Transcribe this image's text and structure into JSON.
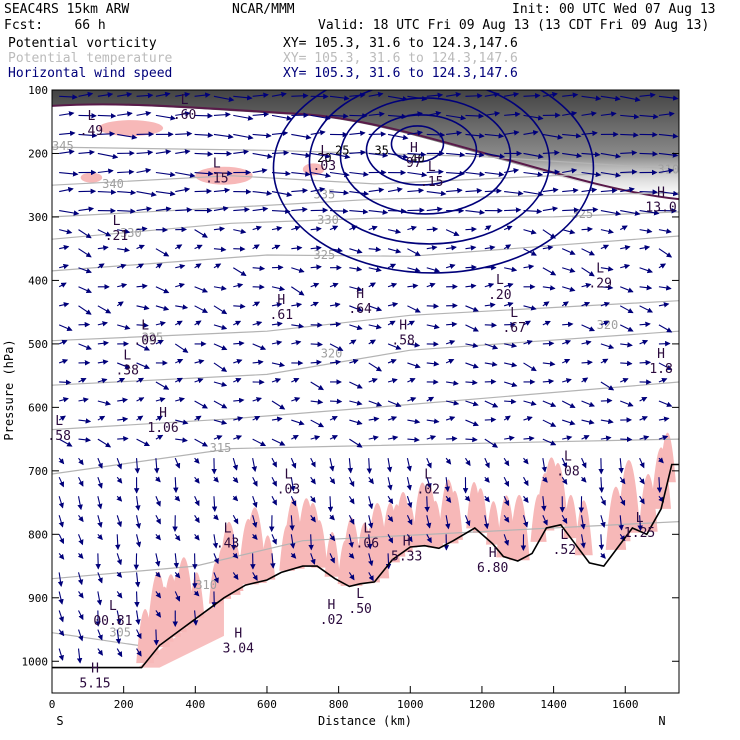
{
  "header": {
    "model": "SEAC4RS 15km ARW",
    "forecast": "Fcst:    66 h",
    "org": "NCAR/MMM",
    "init": "Init: 00 UTC Wed 07 Aug 13",
    "valid": "Valid: 18 UTC Fri 09 Aug 13 (13 CDT Fri 09 Aug 13)"
  },
  "fields": [
    {
      "name": "Potential vorticity",
      "xy": "XY= 105.3, 31.6 to 124.3,147.6",
      "color": "#000000"
    },
    {
      "name": "Potential temperature",
      "xy": "XY= 105.3, 31.6 to 124.3,147.6",
      "color": "#bbbbbb"
    },
    {
      "name": "Horizontal wind speed",
      "xy": "XY= 105.3, 31.6 to 124.3,147.6",
      "color": "#00007a"
    }
  ],
  "chart_data": {
    "type": "cross-section",
    "xlabel": "Distance (km)",
    "ylabel": "Pressure (hPa)",
    "xlim": [
      0,
      1750
    ],
    "ylim": [
      1050,
      100
    ],
    "x_ticks": [
      0,
      200,
      400,
      600,
      800,
      1000,
      1200,
      1400,
      1600
    ],
    "y_ticks": [
      100,
      200,
      300,
      400,
      500,
      600,
      700,
      800,
      900,
      1000
    ],
    "end_labels": {
      "left": "S",
      "right": "N"
    },
    "colors": {
      "theta": "#b4b4b4",
      "wind": "#00007a",
      "pv_shade": "#f7b8b8",
      "pv_line": "#5a1a4a",
      "terrain": "#000000"
    },
    "theta_contours": [
      {
        "label": "345",
        "x": 0,
        "p": 188
      },
      {
        "label": "340",
        "x": 140,
        "p": 248
      },
      {
        "label": "335",
        "x": 730,
        "p": 265
      },
      {
        "label": "330",
        "x": 190,
        "p": 325
      },
      {
        "label": "330",
        "x": 740,
        "p": 305
      },
      {
        "label": "325",
        "x": 250,
        "p": 490
      },
      {
        "label": "325",
        "x": 730,
        "p": 360
      },
      {
        "label": "325",
        "x": 1450,
        "p": 295
      },
      {
        "label": "320",
        "x": 750,
        "p": 515
      },
      {
        "label": "320",
        "x": 1520,
        "p": 470
      },
      {
        "label": "315",
        "x": 440,
        "p": 664
      },
      {
        "label": "310",
        "x": 400,
        "p": 880
      },
      {
        "label": "305",
        "x": 160,
        "p": 955
      },
      {
        "label": "310",
        "x": 1690,
        "p": 225
      }
    ],
    "wind_contours": [
      {
        "label": "20",
        "x": 740,
        "p": 207
      },
      {
        "label": "25",
        "x": 790,
        "p": 195
      },
      {
        "label": "35",
        "x": 900,
        "p": 195
      },
      {
        "label": "40",
        "x": 1000,
        "p": 208
      }
    ],
    "extrema": [
      {
        "kind": "L",
        "value": ".49",
        "x": 110,
        "p": 160
      },
      {
        "kind": "L",
        "value": ".60",
        "x": 370,
        "p": 135
      },
      {
        "kind": "L",
        "value": ".15",
        "x": 460,
        "p": 235
      },
      {
        "kind": "L",
        "value": ".03",
        "x": 760,
        "p": 215
      },
      {
        "kind": "H",
        "value": "97",
        "x": 1010,
        "p": 210
      },
      {
        "kind": "L",
        "value": ".15",
        "x": 1060,
        "p": 240
      },
      {
        "kind": "L",
        "value": ".21",
        "x": 180,
        "p": 325
      },
      {
        "kind": "H",
        "value": "13.0",
        "x": 1700,
        "p": 280
      },
      {
        "kind": "L",
        "value": ".20",
        "x": 1250,
        "p": 418
      },
      {
        "kind": "L",
        "value": ".29",
        "x": 1530,
        "p": 400
      },
      {
        "kind": "H",
        "value": ".61",
        "x": 640,
        "p": 450
      },
      {
        "kind": "H",
        "value": ".64",
        "x": 860,
        "p": 440
      },
      {
        "kind": "L",
        "value": ".09",
        "x": 260,
        "p": 490
      },
      {
        "kind": "L",
        "value": ".67",
        "x": 1290,
        "p": 470
      },
      {
        "kind": "H",
        "value": ".58",
        "x": 980,
        "p": 490
      },
      {
        "kind": "L",
        "value": ".38",
        "x": 210,
        "p": 537
      },
      {
        "kind": "H",
        "value": "1.8",
        "x": 1700,
        "p": 535
      },
      {
        "kind": "H",
        "value": "1.06",
        "x": 310,
        "p": 628
      },
      {
        "kind": "L",
        "value": ".58",
        "x": 20,
        "p": 640
      },
      {
        "kind": "L",
        "value": ".03",
        "x": 660,
        "p": 725
      },
      {
        "kind": "L",
        "value": ".02",
        "x": 1050,
        "p": 725
      },
      {
        "kind": "L",
        "value": ".08",
        "x": 1440,
        "p": 696
      },
      {
        "kind": "L",
        "value": ".43",
        "x": 490,
        "p": 810
      },
      {
        "kind": "L",
        "value": ".06",
        "x": 880,
        "p": 810
      },
      {
        "kind": "H",
        "value": "5.33",
        "x": 990,
        "p": 830
      },
      {
        "kind": "H",
        "value": "6.80",
        "x": 1230,
        "p": 848
      },
      {
        "kind": "L",
        "value": ".52",
        "x": 1430,
        "p": 820
      },
      {
        "kind": "L",
        "value": "1.25",
        "x": 1640,
        "p": 793
      },
      {
        "kind": "L",
        "value": "00.81",
        "x": 170,
        "p": 932
      },
      {
        "kind": "H",
        "value": ".02",
        "x": 780,
        "p": 930
      },
      {
        "kind": "L",
        "value": ".50",
        "x": 860,
        "p": 913
      },
      {
        "kind": "H",
        "value": "3.04",
        "x": 520,
        "p": 975
      },
      {
        "kind": "H",
        "value": "5.15",
        "x": 120,
        "p": 1030
      }
    ]
  }
}
